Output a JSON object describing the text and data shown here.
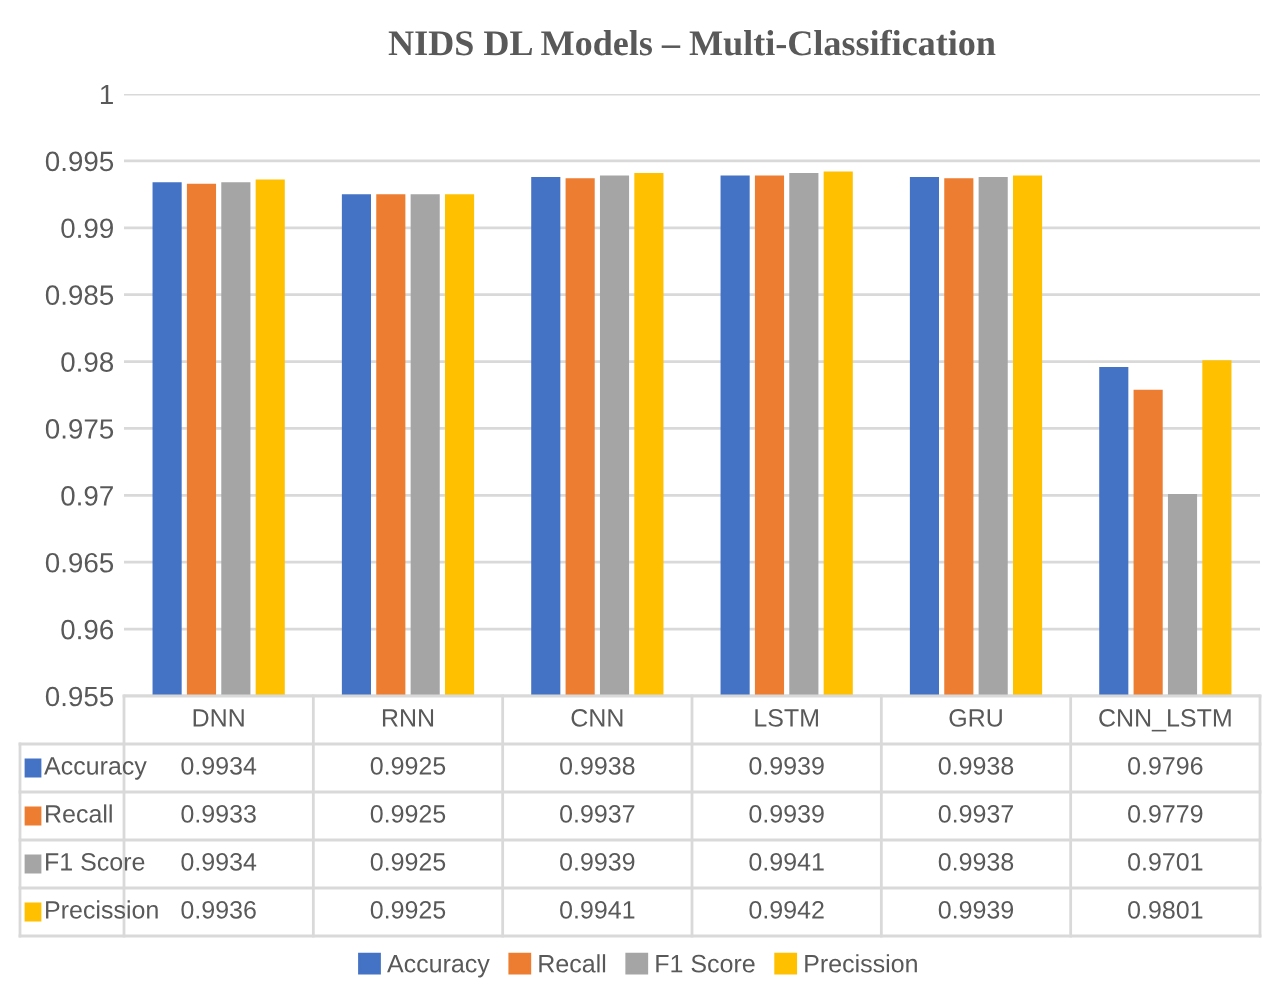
{
  "chart_data": {
    "type": "bar",
    "title": "NIDS DL Models – Multi-Classification",
    "categories": [
      "DNN",
      "RNN",
      "CNN",
      "LSTM",
      "GRU",
      "CNN_LSTM"
    ],
    "series": [
      {
        "name": "Accuracy",
        "color": "#4472c4",
        "values": [
          0.9934,
          0.9925,
          0.9938,
          0.9939,
          0.9938,
          0.9796
        ]
      },
      {
        "name": "Recall",
        "color": "#ed7d31",
        "values": [
          0.9933,
          0.9925,
          0.9937,
          0.9939,
          0.9937,
          0.9779
        ]
      },
      {
        "name": "F1 Score",
        "color": "#a5a5a5",
        "values": [
          0.9934,
          0.9925,
          0.9939,
          0.9941,
          0.9938,
          0.9701
        ]
      },
      {
        "name": "Precission",
        "color": "#ffc000",
        "values": [
          0.9936,
          0.9925,
          0.9941,
          0.9942,
          0.9939,
          0.9801
        ]
      }
    ],
    "ylim": [
      0.955,
      1
    ],
    "yticks": [
      0.955,
      0.96,
      0.965,
      0.97,
      0.975,
      0.98,
      0.985,
      0.99,
      0.995,
      1
    ],
    "grid": "y",
    "legend": "bottom",
    "data_labels": true
  }
}
